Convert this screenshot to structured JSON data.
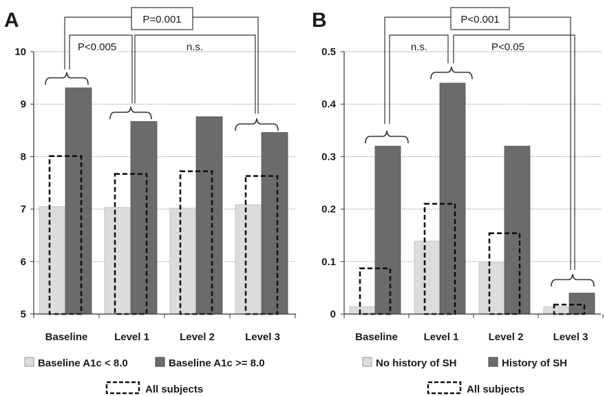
{
  "chart_data": [
    {
      "type": "bar",
      "panel_label": "A",
      "categories": [
        "Baseline",
        "Level 1",
        "Level 2",
        "Level 3"
      ],
      "ylim": [
        5,
        10
      ],
      "yticks": [
        "5",
        "6",
        "7",
        "8",
        "9",
        "10"
      ],
      "grid": true,
      "series": [
        {
          "name": "Baseline A1c < 8.0",
          "color": "#dcdcdc",
          "values": [
            7.05,
            7.03,
            7.02,
            7.08
          ]
        },
        {
          "name": "Baseline A1c >= 8.0",
          "color": "#6b6b6b",
          "values": [
            9.31,
            8.67,
            8.76,
            8.46
          ]
        },
        {
          "name": "All subjects",
          "style": "dashed-outline",
          "values": [
            8.01,
            7.67,
            7.72,
            7.63
          ]
        }
      ],
      "annotations": [
        "P=0.001",
        "P<0.005",
        "n.s."
      ],
      "legend": {
        "placement": "bottom",
        "items": [
          "Baseline A1c < 8.0",
          "Baseline A1c >= 8.0",
          "All subjects"
        ]
      }
    },
    {
      "type": "bar",
      "panel_label": "B",
      "categories": [
        "Baseline",
        "Level 1",
        "Level 2",
        "Level 3"
      ],
      "ylim": [
        0,
        0.5
      ],
      "yticks": [
        "0",
        "0.1",
        "0.2",
        "0.3",
        "0.4",
        "0.5"
      ],
      "grid": true,
      "series": [
        {
          "name": "No history of SH",
          "color": "#dcdcdc",
          "values": [
            0.014,
            0.139,
            0.098,
            0.014
          ]
        },
        {
          "name": "History of SH",
          "color": "#6b6b6b",
          "values": [
            0.32,
            0.44,
            0.32,
            0.04
          ]
        },
        {
          "name": "All subjects",
          "style": "dashed-outline",
          "values": [
            0.087,
            0.21,
            0.154,
            0.018
          ]
        }
      ],
      "annotations": [
        "P<0.001",
        "n.s.",
        "P<0.05"
      ],
      "legend": {
        "placement": "bottom",
        "items": [
          "No history of SH",
          "History of SH",
          "All subjects"
        ]
      }
    }
  ]
}
